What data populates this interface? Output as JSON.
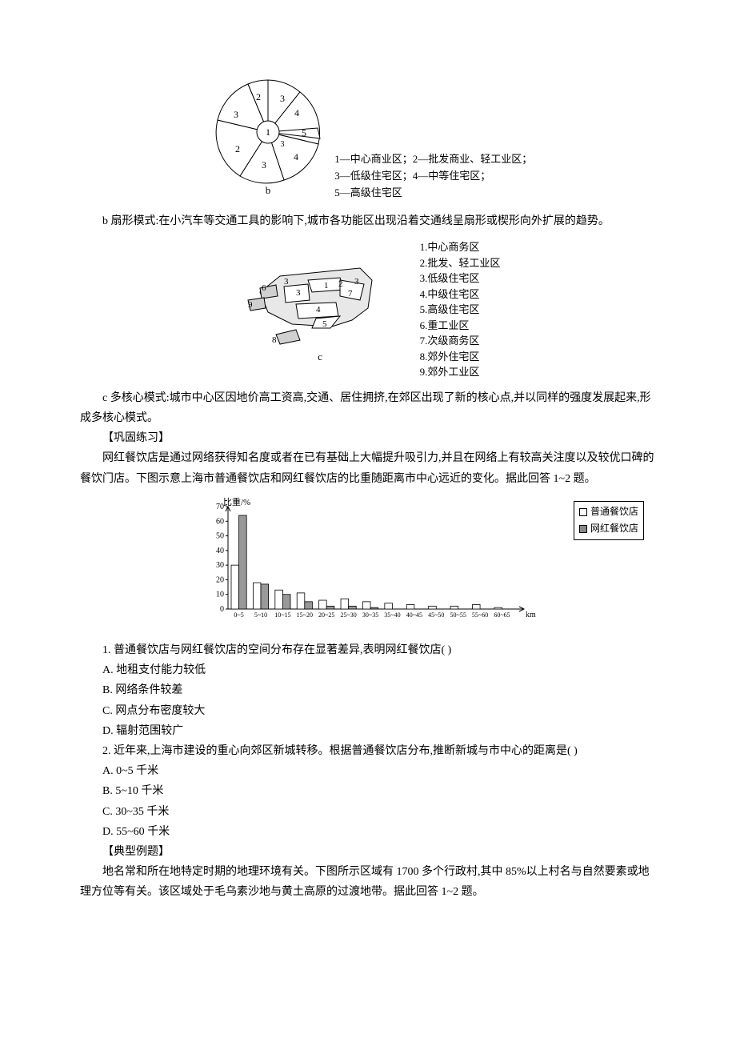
{
  "sector": {
    "labels": [
      "1",
      "2",
      "3",
      "4",
      "5",
      "3",
      "3",
      "3",
      "4",
      "2"
    ],
    "sub_label": "b",
    "caption_l1": "1—中心商业区；2—批发商业、轻工业区；",
    "caption_l2": "3—低级住宅区；4—中等住宅区；",
    "caption_l3": "5—高级住宅区"
  },
  "para_b": "b 扇形模式:在小汽车等交通工具的影响下,城市各功能区出现沿着交通线呈扇形或楔形向外扩展的趋势。",
  "multicore": {
    "sub_label": "c",
    "legend": [
      "1.中心商务区",
      "2.批发、轻工业区",
      "3.低级住宅区",
      "4.中级住宅区",
      "5.高级住宅区",
      "6.重工业区",
      "7.次级商务区",
      "8.郊外住宅区",
      "9.郊外工业区"
    ],
    "node_labels": [
      "1",
      "2",
      "3",
      "3",
      "3",
      "4",
      "5",
      "6",
      "7",
      "8",
      "9"
    ]
  },
  "para_c": "c 多核心模式:城市中心区因地价高工资高,交通、居住拥挤,在郊区出现了新的核心点,并以同样的强度发展起来,形成多核心模式。",
  "practice_head": "【巩固练习】",
  "practice_intro": "网红餐饮店是通过网络获得知名度或者在已有基础上大幅提升吸引力,并且在网络上有较高关注度以及较优口碑的餐饮门店。下图示意上海市普通餐饮店和网红餐饮店的比重随距离市中心远近的变化。据此回答 1~2 题。",
  "chart": {
    "y_label": "比重/%",
    "y_max": 70,
    "y_ticks": [
      0,
      10,
      20,
      30,
      40,
      50,
      60,
      70
    ],
    "x_unit": "km",
    "bins": [
      "0~5",
      "5~10",
      "10~15",
      "15~20",
      "20~25",
      "25~30",
      "30~35",
      "35~40",
      "40~45",
      "45~50",
      "50~55",
      "55~60",
      "60~65"
    ],
    "series": [
      {
        "name": "普通餐饮店",
        "fill": "#ffffff",
        "stroke": "#000000",
        "values": [
          30,
          18,
          13,
          11,
          6,
          7,
          5,
          4,
          3,
          2,
          2,
          3,
          1
        ]
      },
      {
        "name": "网红餐饮店",
        "fill": "#999999",
        "stroke": "#000000",
        "values": [
          64,
          17,
          10,
          5,
          2,
          2,
          1,
          0,
          0,
          0,
          0,
          0,
          0
        ]
      }
    ],
    "legend_items": [
      "普通餐饮店",
      "网红餐饮店"
    ]
  },
  "q1": {
    "stem": "1. 普通餐饮店与网红餐饮店的空间分布存在显著差异,表明网红餐饮店(      )",
    "A": "A. 地租支付能力较低",
    "B": "B. 网络条件较差",
    "C": "C. 网点分布密度较大",
    "D": "D. 辐射范围较广"
  },
  "q2": {
    "stem": "2. 近年来,上海市建设的重心向郊区新城转移。根据普通餐饮店分布,推断新城与市中心的距离是(      )",
    "A": "A. 0~5 千米",
    "B": "B. 5~10 千米",
    "C": "C. 30~35 千米",
    "D": "D. 55~60 千米"
  },
  "example_head": "【典型例题】",
  "example_intro": "地名常和所在地特定时期的地理环境有关。下图所示区域有 1700 多个行政村,其中 85%以上村名与自然要素或地理方位等有关。该区域处于毛乌素沙地与黄土高原的过渡地带。据此回答 1~2 题。",
  "colors": {
    "stroke": "#000000",
    "fill_light": "#ffffff",
    "fill_gray": "#cccccc"
  }
}
